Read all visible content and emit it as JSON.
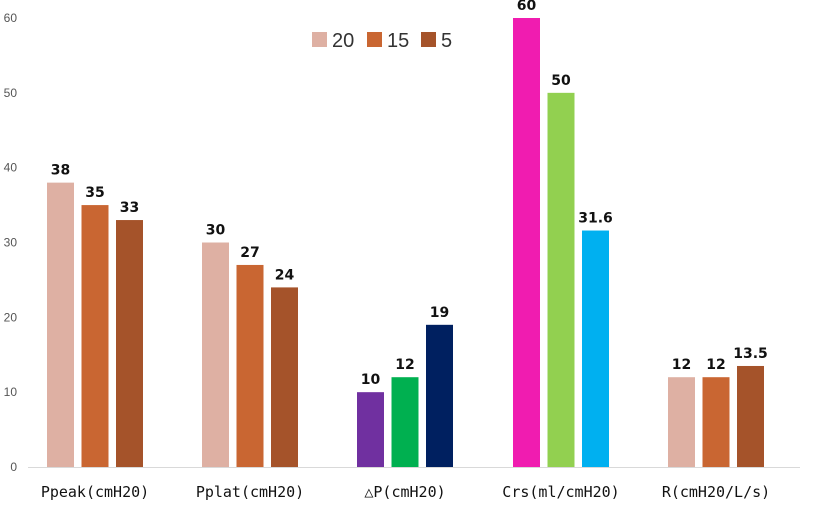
{
  "chart_data": {
    "type": "bar",
    "title": "",
    "xlabel": "",
    "ylabel": "",
    "ylim": [
      0,
      60
    ],
    "yticks": [
      0,
      10,
      20,
      30,
      40,
      50,
      60
    ],
    "grid": false,
    "legend_position": "top-center",
    "legend": [
      {
        "name": "20",
        "color": "#deb0a3"
      },
      {
        "name": "15",
        "color": "#c96632"
      },
      {
        "name": "5",
        "color": "#a5532a"
      }
    ],
    "categories": [
      "Ppeak(cmH20)",
      "Pplat(cmH20)",
      "△P(cmH20)",
      "Crs(ml/cmH20)",
      "R(cmH20/L/s)"
    ],
    "groups": [
      {
        "category": "Ppeak(cmH20)",
        "bars": [
          {
            "value": 38,
            "label": "38",
            "color": "#deb0a3"
          },
          {
            "value": 35,
            "label": "35",
            "color": "#c96632"
          },
          {
            "value": 33,
            "label": "33",
            "color": "#a5532a"
          }
        ]
      },
      {
        "category": "Pplat(cmH20)",
        "bars": [
          {
            "value": 30,
            "label": "30",
            "color": "#deb0a3"
          },
          {
            "value": 27,
            "label": "27",
            "color": "#c96632"
          },
          {
            "value": 24,
            "label": "24",
            "color": "#a5532a"
          }
        ]
      },
      {
        "category": "△P(cmH20)",
        "bars": [
          {
            "value": 10,
            "label": "10",
            "color": "#7030a0"
          },
          {
            "value": 12,
            "label": "12",
            "color": "#00b050"
          },
          {
            "value": 19,
            "label": "19",
            "color": "#002060"
          }
        ]
      },
      {
        "category": "Crs(ml/cmH20)",
        "bars": [
          {
            "value": 60,
            "label": "60",
            "color": "#f01cb0"
          },
          {
            "value": 50,
            "label": "50",
            "color": "#92d050"
          },
          {
            "value": 31.6,
            "label": "31.6",
            "color": "#00b0f0"
          }
        ]
      },
      {
        "category": "R(cmH20/L/s)",
        "bars": [
          {
            "value": 12,
            "label": "12",
            "color": "#deb0a3"
          },
          {
            "value": 12,
            "label": "12",
            "color": "#c96632"
          },
          {
            "value": 13.5,
            "label": "13.5",
            "color": "#a5532a"
          }
        ]
      }
    ]
  }
}
